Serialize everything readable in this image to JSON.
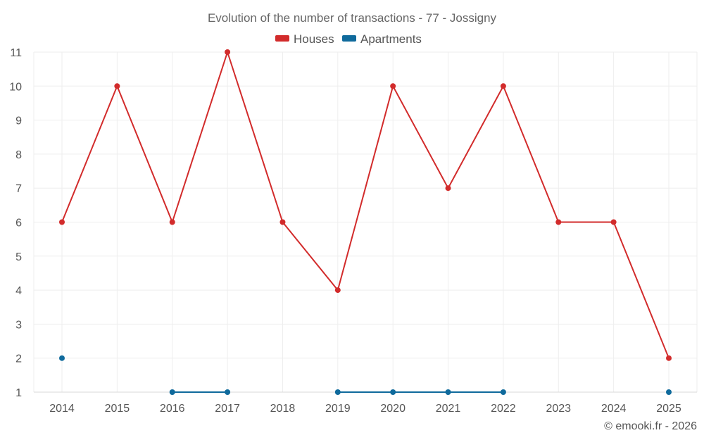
{
  "chart_data": {
    "type": "line",
    "title": "Evolution of the number of transactions - 77 - Jossigny",
    "xlabel": "",
    "ylabel": "",
    "x": [
      "2014",
      "2015",
      "2016",
      "2017",
      "2018",
      "2019",
      "2020",
      "2021",
      "2022",
      "2023",
      "2024",
      "2025"
    ],
    "ylim": [
      1,
      11
    ],
    "yticks": [
      1,
      2,
      3,
      4,
      5,
      6,
      7,
      8,
      9,
      10,
      11
    ],
    "grid": true,
    "legend_position": "top-center",
    "series": [
      {
        "name": "Houses",
        "color": "#d22b2b",
        "values": [
          6,
          10,
          6,
          11,
          6,
          4,
          10,
          7,
          10,
          6,
          6,
          2
        ]
      },
      {
        "name": "Apartments",
        "color": "#0f6a9c",
        "values": [
          2,
          null,
          1,
          1,
          null,
          1,
          1,
          1,
          1,
          null,
          null,
          1
        ]
      }
    ]
  },
  "footer": {
    "copyright": "© emooki.fr - 2026"
  }
}
